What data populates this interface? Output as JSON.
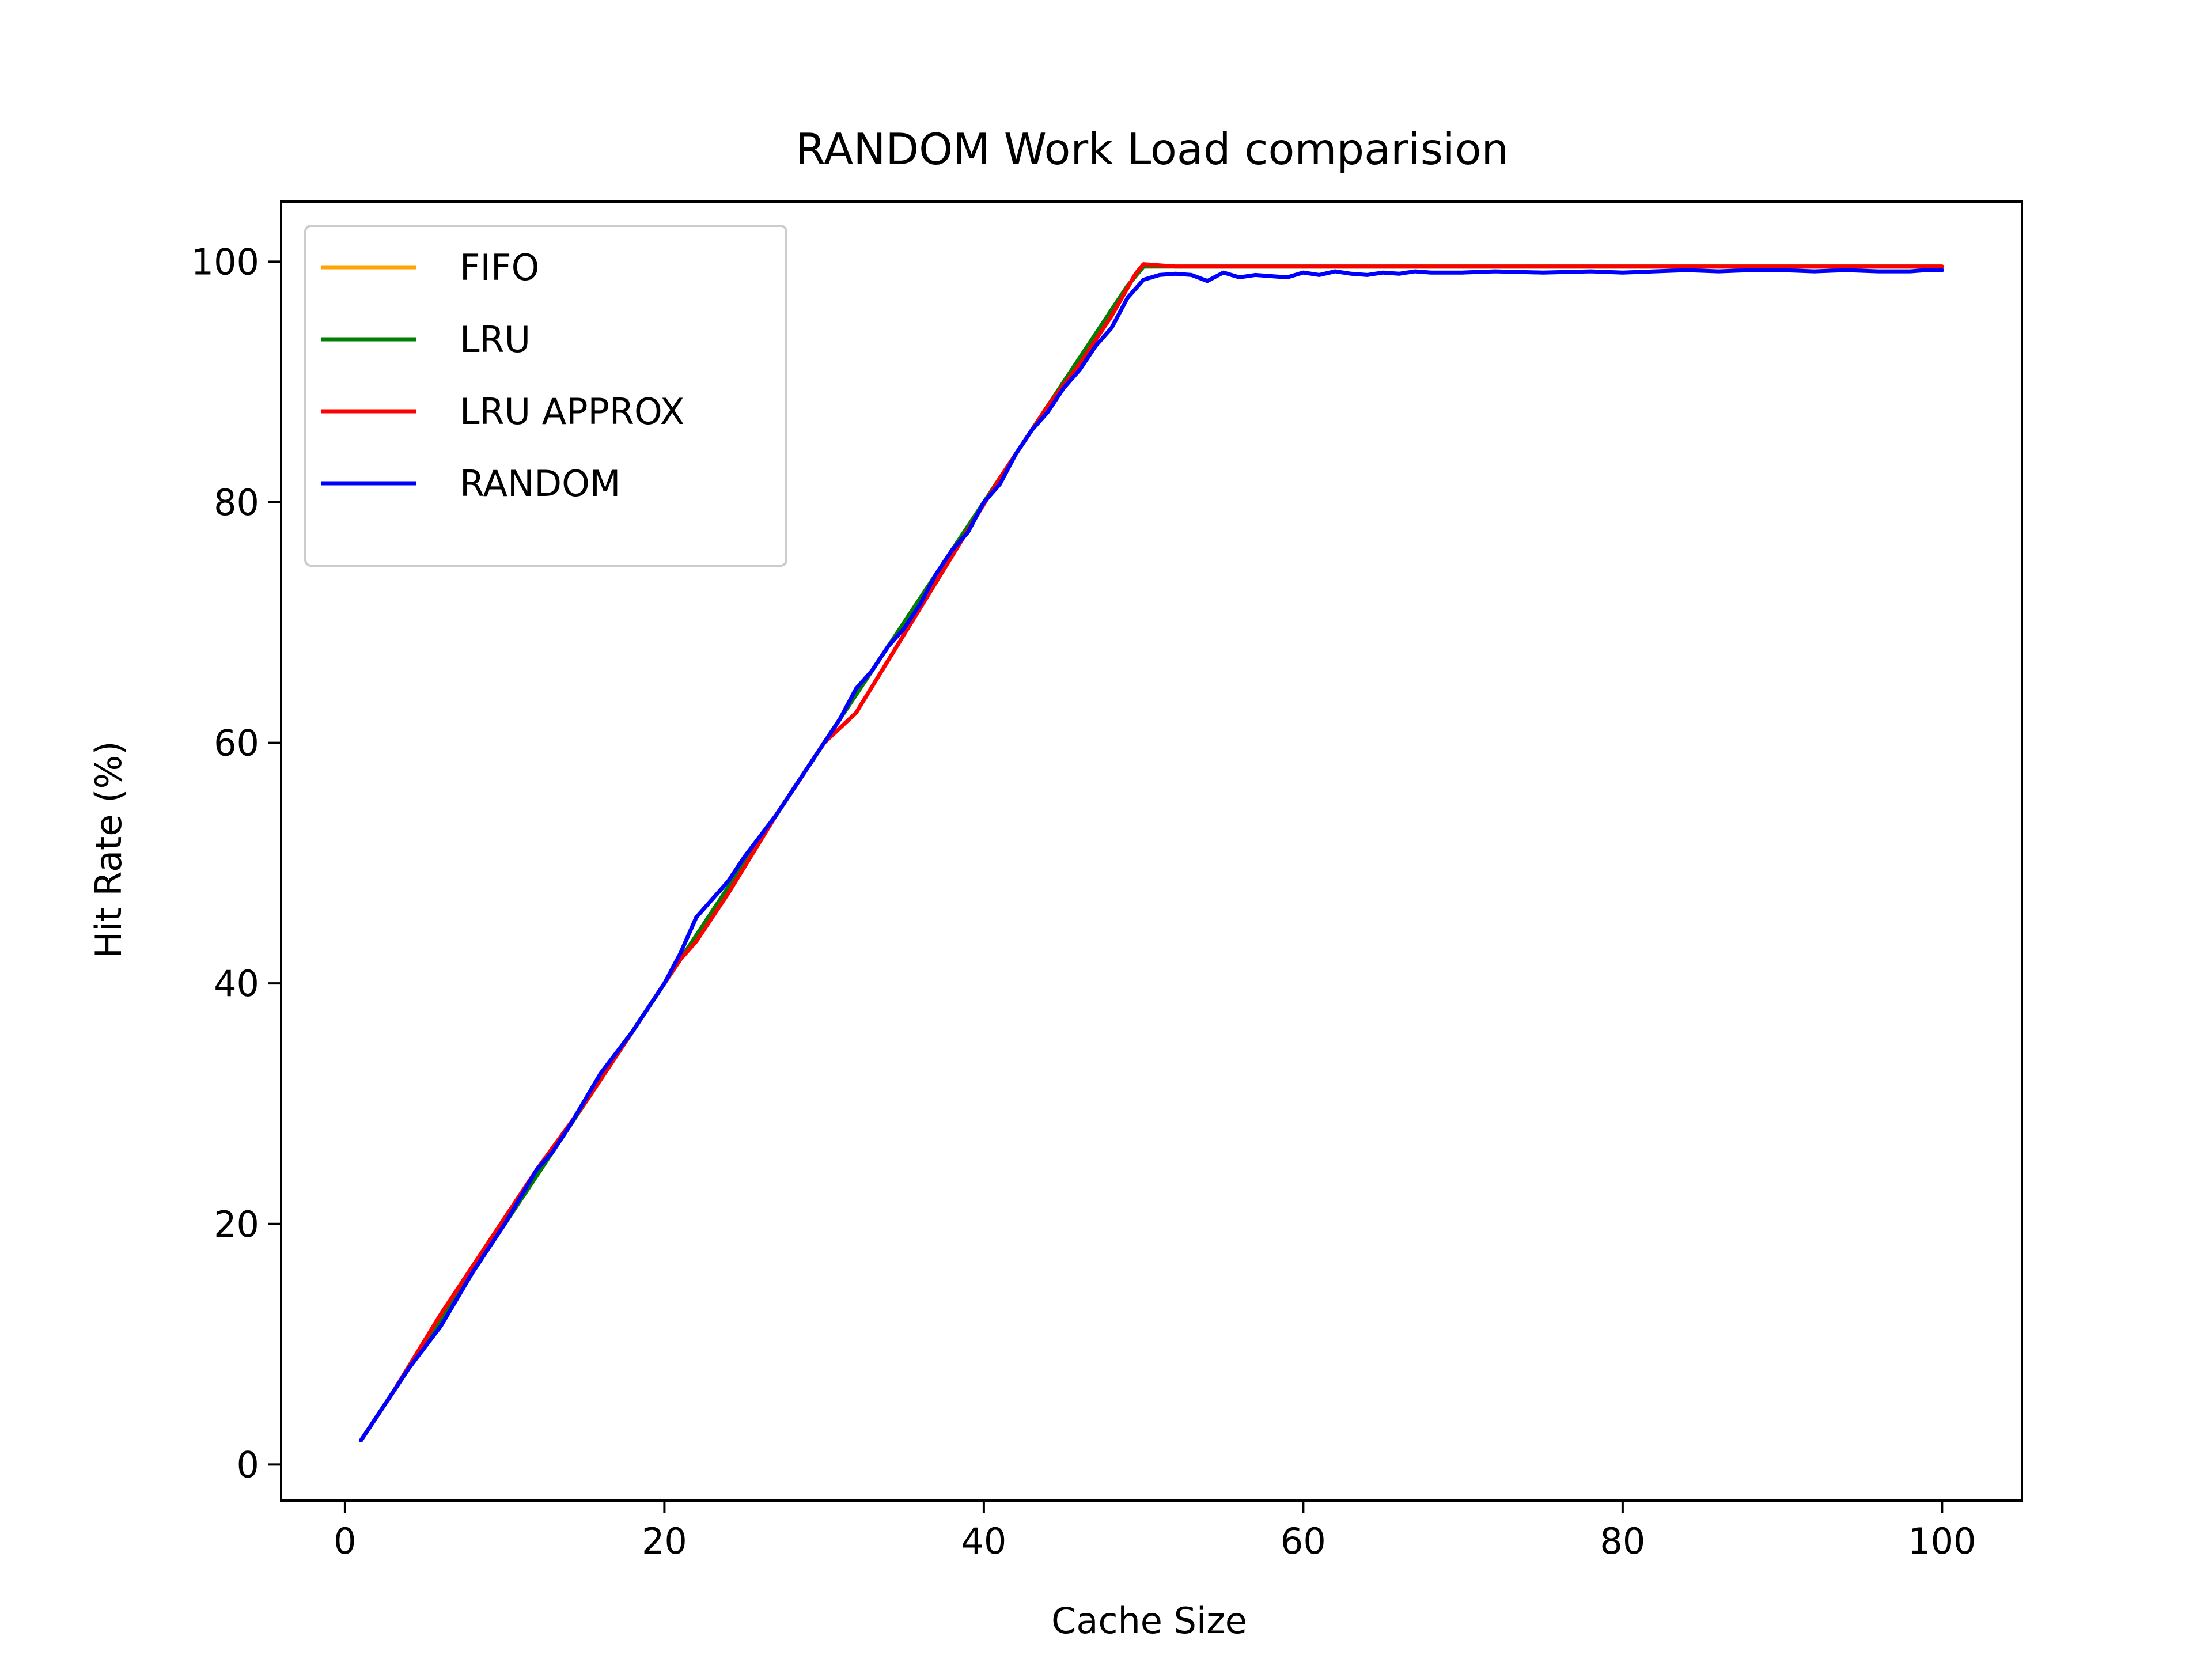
{
  "chart_data": {
    "type": "line",
    "title": "RANDOM Work Load comparision",
    "xlabel": "Cache Size",
    "ylabel": "Hit Rate (%)",
    "xlim": [
      -4,
      105
    ],
    "ylim": [
      -3,
      105
    ],
    "xticks": [
      0,
      20,
      40,
      60,
      80,
      100
    ],
    "yticks": [
      0,
      20,
      40,
      60,
      80,
      100
    ],
    "grid": false,
    "legend_position": "top-left",
    "series": [
      {
        "name": "FIFO",
        "color": "#FFA500",
        "points": [
          [
            1,
            2
          ],
          [
            5,
            10
          ],
          [
            10,
            20
          ],
          [
            15,
            30
          ],
          [
            20,
            40
          ],
          [
            25,
            50
          ],
          [
            30,
            60
          ],
          [
            35,
            70
          ],
          [
            40,
            80
          ],
          [
            45,
            90
          ],
          [
            49,
            98
          ],
          [
            50,
            99.6
          ],
          [
            52,
            99.6
          ],
          [
            60,
            99.6
          ],
          [
            70,
            99.6
          ],
          [
            80,
            99.6
          ],
          [
            90,
            99.6
          ],
          [
            100,
            99.6
          ]
        ]
      },
      {
        "name": "LRU",
        "color": "#008000",
        "points": [
          [
            1,
            2
          ],
          [
            5,
            10
          ],
          [
            10,
            20
          ],
          [
            15,
            30
          ],
          [
            20,
            40
          ],
          [
            25,
            50
          ],
          [
            30,
            60
          ],
          [
            35,
            70
          ],
          [
            40,
            80
          ],
          [
            45,
            90
          ],
          [
            49,
            98
          ],
          [
            50,
            99.6
          ],
          [
            52,
            99.6
          ],
          [
            60,
            99.6
          ],
          [
            70,
            99.6
          ],
          [
            80,
            99.6
          ],
          [
            90,
            99.6
          ],
          [
            100,
            99.6
          ]
        ]
      },
      {
        "name": "LRU APPROX",
        "color": "#FF0000",
        "points": [
          [
            1,
            2
          ],
          [
            3,
            6
          ],
          [
            6,
            12.5
          ],
          [
            9,
            18.5
          ],
          [
            12,
            24.5
          ],
          [
            15,
            30
          ],
          [
            18,
            36
          ],
          [
            21,
            42
          ],
          [
            22,
            43.5
          ],
          [
            24,
            47.5
          ],
          [
            27,
            54
          ],
          [
            30,
            60
          ],
          [
            32,
            62.5
          ],
          [
            35,
            69
          ],
          [
            38,
            75.5
          ],
          [
            41,
            82
          ],
          [
            44,
            88
          ],
          [
            46,
            91.5
          ],
          [
            48,
            95.5
          ],
          [
            49.5,
            99
          ],
          [
            50,
            99.8
          ],
          [
            51,
            99.7
          ],
          [
            52,
            99.6
          ],
          [
            60,
            99.6
          ],
          [
            70,
            99.6
          ],
          [
            80,
            99.6
          ],
          [
            90,
            99.6
          ],
          [
            100,
            99.6
          ]
        ]
      },
      {
        "name": "RANDOM",
        "color": "#0000FF",
        "points": [
          [
            1,
            2
          ],
          [
            3,
            6
          ],
          [
            4,
            8
          ],
          [
            6,
            11.5
          ],
          [
            8,
            16
          ],
          [
            10,
            20
          ],
          [
            12,
            24.5
          ],
          [
            13,
            26
          ],
          [
            14,
            28
          ],
          [
            16,
            32.5
          ],
          [
            18,
            36
          ],
          [
            20,
            40
          ],
          [
            21,
            42.5
          ],
          [
            22,
            45.5
          ],
          [
            23,
            47
          ],
          [
            24,
            48.5
          ],
          [
            25,
            50.5
          ],
          [
            27,
            54
          ],
          [
            29,
            58
          ],
          [
            31,
            62
          ],
          [
            32,
            64.5
          ],
          [
            33,
            66
          ],
          [
            34,
            68
          ],
          [
            35,
            69.5
          ],
          [
            36,
            71.5
          ],
          [
            37,
            74
          ],
          [
            38,
            76
          ],
          [
            39,
            77.5
          ],
          [
            40,
            80
          ],
          [
            41,
            81.5
          ],
          [
            42,
            84
          ],
          [
            43,
            86
          ],
          [
            44,
            87.5
          ],
          [
            45,
            89.5
          ],
          [
            46,
            91
          ],
          [
            47,
            93
          ],
          [
            48,
            94.5
          ],
          [
            49,
            97
          ],
          [
            50,
            98.5
          ],
          [
            51,
            98.9
          ],
          [
            52,
            99
          ],
          [
            53,
            98.9
          ],
          [
            54,
            98.4
          ],
          [
            55,
            99.1
          ],
          [
            56,
            98.7
          ],
          [
            57,
            98.9
          ],
          [
            58,
            98.8
          ],
          [
            59,
            98.7
          ],
          [
            60,
            99.1
          ],
          [
            61,
            98.9
          ],
          [
            62,
            99.2
          ],
          [
            63,
            99
          ],
          [
            64,
            98.9
          ],
          [
            65,
            99.1
          ],
          [
            66,
            99
          ],
          [
            67,
            99.2
          ],
          [
            68,
            99.1
          ],
          [
            70,
            99.1
          ],
          [
            72,
            99.2
          ],
          [
            75,
            99.1
          ],
          [
            78,
            99.2
          ],
          [
            80,
            99.1
          ],
          [
            82,
            99.2
          ],
          [
            84,
            99.3
          ],
          [
            86,
            99.2
          ],
          [
            88,
            99.3
          ],
          [
            90,
            99.3
          ],
          [
            92,
            99.2
          ],
          [
            94,
            99.3
          ],
          [
            96,
            99.2
          ],
          [
            98,
            99.2
          ],
          [
            99,
            99.3
          ],
          [
            100,
            99.3
          ]
        ]
      }
    ]
  }
}
